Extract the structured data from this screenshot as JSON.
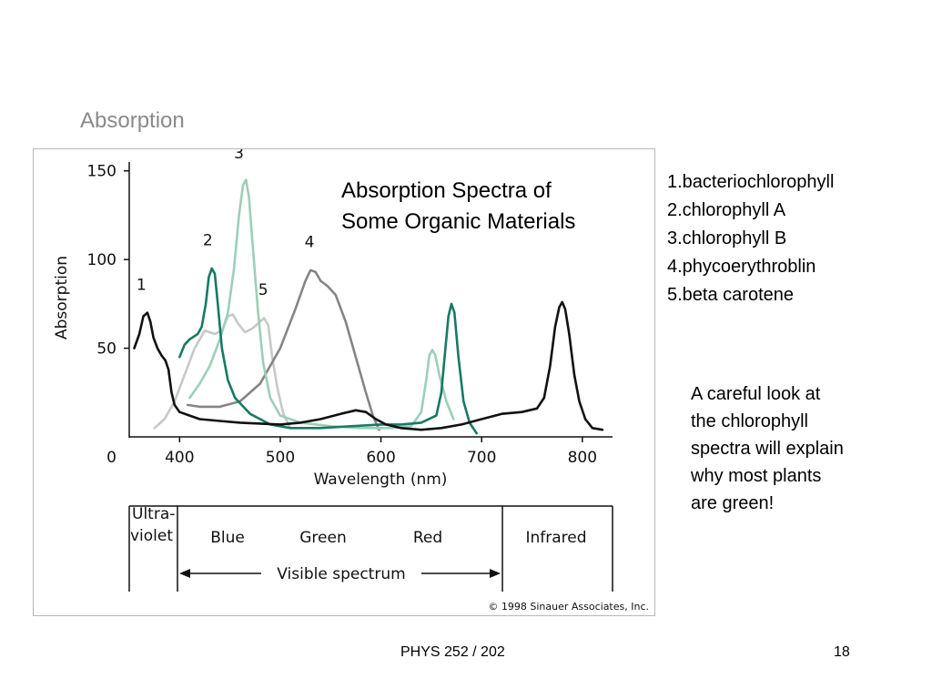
{
  "slide": {
    "title": "Absorption",
    "footer_course": "PHYS 252 / 202",
    "page_number": "18"
  },
  "chart_title_lines": [
    "Absorption Spectra of",
    "Some Organic Materials"
  ],
  "legend": [
    "1.bacteriochlorophyll",
    "2.chlorophyll A",
    "3.chlorophyll B",
    "4.phycoerythroblin",
    "5.beta carotene"
  ],
  "note_lines": [
    "A careful look at",
    "the chlorophyll",
    "spectra will explain",
    "why most plants",
    "are green!"
  ],
  "spectrum_bands": {
    "ultraviolet": [
      "Ultra-",
      "violet"
    ],
    "blue": "Blue",
    "green": "Green",
    "red": "Red",
    "infrared": "Infrared",
    "visible": "Visible spectrum"
  },
  "copyright": "© 1998 Sinauer Associates, Inc.",
  "chart_data": {
    "type": "line",
    "title": "",
    "xlabel": "Wavelength (nm)",
    "ylabel": "Absorption",
    "xlim": [
      350,
      830
    ],
    "ylim": [
      0,
      155
    ],
    "x_ticks": [
      400,
      500,
      600,
      700,
      800
    ],
    "y_ticks": [
      0,
      50,
      100,
      150
    ],
    "grid": false,
    "series": [
      {
        "name": "1",
        "color": "#111111",
        "label_at": [
          362,
          83
        ],
        "points": [
          [
            355,
            50
          ],
          [
            360,
            58
          ],
          [
            364,
            68
          ],
          [
            368,
            70
          ],
          [
            371,
            65
          ],
          [
            374,
            56
          ],
          [
            378,
            50
          ],
          [
            382,
            46
          ],
          [
            386,
            43
          ],
          [
            389,
            38
          ],
          [
            392,
            25
          ],
          [
            395,
            18
          ],
          [
            400,
            14
          ],
          [
            410,
            12
          ],
          [
            420,
            10
          ],
          [
            440,
            9
          ],
          [
            460,
            8
          ],
          [
            480,
            7.5
          ],
          [
            500,
            7
          ],
          [
            520,
            8
          ],
          [
            540,
            10
          ],
          [
            560,
            13
          ],
          [
            575,
            15
          ],
          [
            585,
            14
          ],
          [
            595,
            10
          ],
          [
            605,
            7
          ],
          [
            620,
            5
          ],
          [
            640,
            4
          ],
          [
            660,
            5
          ],
          [
            680,
            7
          ],
          [
            700,
            10
          ],
          [
            720,
            13
          ],
          [
            740,
            14
          ],
          [
            755,
            16
          ],
          [
            762,
            22
          ],
          [
            768,
            40
          ],
          [
            773,
            62
          ],
          [
            777,
            73
          ],
          [
            780,
            76
          ],
          [
            783,
            72
          ],
          [
            787,
            58
          ],
          [
            792,
            35
          ],
          [
            797,
            20
          ],
          [
            803,
            10
          ],
          [
            810,
            5
          ],
          [
            820,
            4
          ]
        ]
      },
      {
        "name": "2",
        "color": "#167a64",
        "label_at": [
          428,
          108
        ],
        "points": [
          [
            400,
            45
          ],
          [
            405,
            52
          ],
          [
            410,
            55
          ],
          [
            418,
            58
          ],
          [
            422,
            62
          ],
          [
            426,
            75
          ],
          [
            429,
            90
          ],
          [
            432,
            95
          ],
          [
            435,
            92
          ],
          [
            438,
            75
          ],
          [
            442,
            50
          ],
          [
            448,
            32
          ],
          [
            455,
            22
          ],
          [
            470,
            13
          ],
          [
            490,
            7
          ],
          [
            510,
            5
          ],
          [
            540,
            5
          ],
          [
            570,
            6
          ],
          [
            600,
            7
          ],
          [
            620,
            7
          ],
          [
            640,
            8
          ],
          [
            655,
            12
          ],
          [
            660,
            25
          ],
          [
            664,
            50
          ],
          [
            667,
            68
          ],
          [
            670,
            75
          ],
          [
            673,
            70
          ],
          [
            677,
            45
          ],
          [
            682,
            20
          ],
          [
            688,
            8
          ],
          [
            695,
            2
          ]
        ]
      },
      {
        "name": "3",
        "color": "#9ccfb8",
        "label_at": [
          459,
          157
        ],
        "points": [
          [
            410,
            22
          ],
          [
            420,
            30
          ],
          [
            430,
            40
          ],
          [
            440,
            55
          ],
          [
            448,
            70
          ],
          [
            454,
            95
          ],
          [
            459,
            125
          ],
          [
            463,
            142
          ],
          [
            466,
            145
          ],
          [
            469,
            135
          ],
          [
            473,
            105
          ],
          [
            478,
            70
          ],
          [
            483,
            42
          ],
          [
            490,
            22
          ],
          [
            500,
            12
          ],
          [
            520,
            8
          ],
          [
            550,
            6
          ],
          [
            580,
            5
          ],
          [
            610,
            5
          ],
          [
            630,
            6
          ],
          [
            640,
            14
          ],
          [
            645,
            32
          ],
          [
            648,
            46
          ],
          [
            651,
            49
          ],
          [
            654,
            46
          ],
          [
            658,
            35
          ],
          [
            665,
            20
          ],
          [
            672,
            10
          ]
        ]
      },
      {
        "name": "4",
        "color": "#858585",
        "label_at": [
          529,
          107
        ],
        "points": [
          [
            408,
            18
          ],
          [
            420,
            17
          ],
          [
            440,
            17
          ],
          [
            460,
            20
          ],
          [
            480,
            30
          ],
          [
            500,
            50
          ],
          [
            515,
            72
          ],
          [
            525,
            88
          ],
          [
            530,
            94
          ],
          [
            535,
            93
          ],
          [
            540,
            88
          ],
          [
            547,
            85
          ],
          [
            555,
            80
          ],
          [
            565,
            65
          ],
          [
            575,
            45
          ],
          [
            585,
            25
          ],
          [
            592,
            12
          ],
          [
            598,
            4
          ]
        ]
      },
      {
        "name": "5",
        "color": "#c8c8c8",
        "label_at": [
          483,
          80
        ],
        "points": [
          [
            375,
            5
          ],
          [
            385,
            10
          ],
          [
            395,
            20
          ],
          [
            405,
            35
          ],
          [
            415,
            50
          ],
          [
            425,
            60
          ],
          [
            435,
            58
          ],
          [
            442,
            60
          ],
          [
            448,
            68
          ],
          [
            453,
            69
          ],
          [
            458,
            64
          ],
          [
            465,
            59
          ],
          [
            472,
            61
          ],
          [
            478,
            64
          ],
          [
            484,
            67
          ],
          [
            488,
            63
          ],
          [
            492,
            45
          ],
          [
            497,
            28
          ],
          [
            503,
            13
          ],
          [
            510,
            5
          ]
        ]
      }
    ]
  }
}
